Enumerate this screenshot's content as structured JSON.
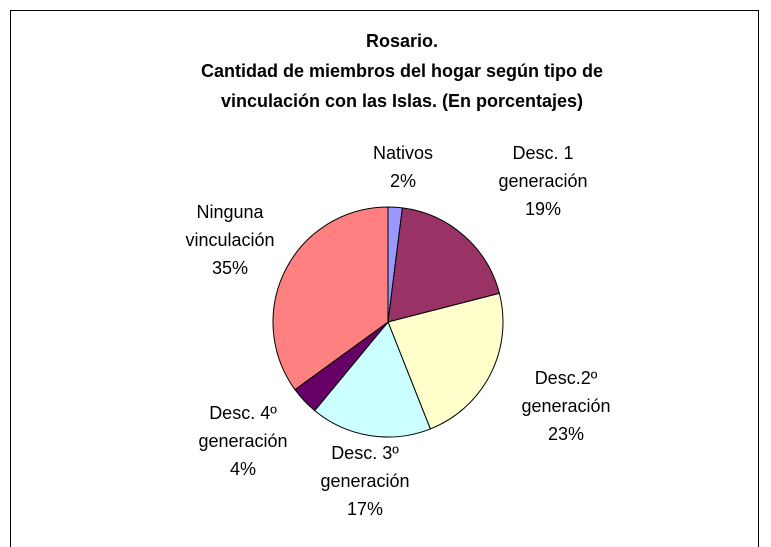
{
  "chart_data": {
    "type": "pie",
    "title": [
      "Rosario.",
      "Cantidad de miembros del hogar según tipo de",
      "vinculación con las Islas. (En porcentajes)"
    ],
    "categories": [
      "Nativos",
      "Desc. 1 generación",
      "Desc.2º generación",
      "Desc. 3º generación",
      "Desc. 4º generación",
      "Ninguna vinculación"
    ],
    "values": [
      2,
      19,
      23,
      17,
      4,
      35
    ],
    "value_labels": [
      "2%",
      "19%",
      "23%",
      "17%",
      "4%",
      "35%"
    ],
    "colors": [
      "#9999ff",
      "#993366",
      "#ffffcc",
      "#ccffff",
      "#660066",
      "#ff8080"
    ]
  }
}
